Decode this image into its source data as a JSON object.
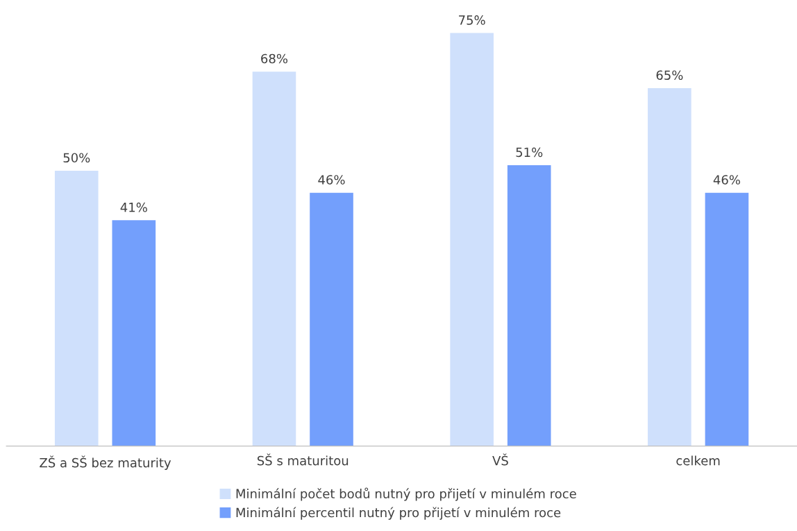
{
  "chart_data": {
    "type": "bar",
    "categories": [
      "ZŠ a SŠ bez maturity",
      "SŠ s maturitou",
      "VŠ",
      "celkem"
    ],
    "series": [
      {
        "name": "Minimální počet bodů nutný pro přijetí v minulém roce",
        "color": "#cfe0fc",
        "values": [
          50,
          68,
          75,
          65
        ],
        "value_labels": [
          "50%",
          "68%",
          "75%",
          "65%"
        ]
      },
      {
        "name": "Minimální percentil nutný pro přijetí v minulém roce",
        "color": "#739ffc",
        "values": [
          41,
          46,
          51,
          46
        ],
        "value_labels": [
          "41%",
          "46%",
          "51%",
          "46%"
        ]
      }
    ],
    "tick_labels": "x",
    "grid": false,
    "legend": "bottom"
  }
}
